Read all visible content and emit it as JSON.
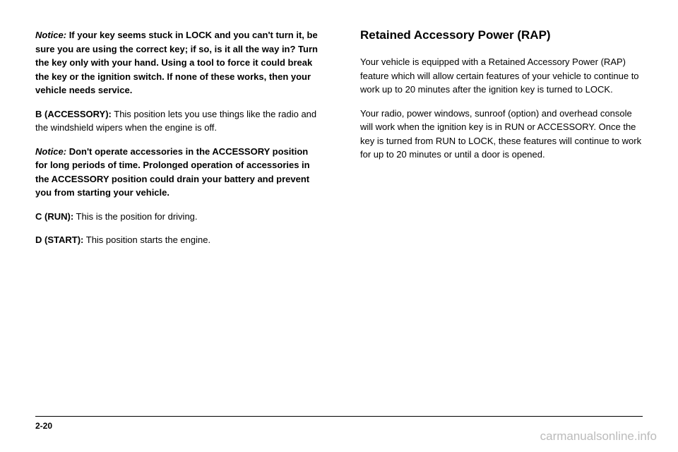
{
  "left": {
    "notice1": {
      "label": "Notice:",
      "text": "If your key seems stuck in LOCK and you can't turn it, be sure you are using the correct key; if so, is it all the way in? Turn the key only with your hand. Using a tool to force it could break the key or the ignition switch. If none of these works, then your vehicle needs service."
    },
    "positionB": {
      "label": "B (ACCESSORY):",
      "text": "This position lets you use things like the radio and the windshield wipers when the engine is off."
    },
    "notice2": {
      "label": "Notice:",
      "text": "Don't operate accessories in the ACCESSORY position for long periods of time. Prolonged operation of accessories in the ACCESSORY position could drain your battery and prevent you from starting your vehicle."
    },
    "positionC": {
      "label": "C (RUN):",
      "text": "This is the position for driving."
    },
    "positionD": {
      "label": "D (START):",
      "text": "This position starts the engine."
    }
  },
  "right": {
    "heading": "Retained Accessory Power (RAP)",
    "para1": "Your vehicle is equipped with a Retained Accessory Power (RAP) feature which will allow certain features of your vehicle to continue to work up to 20 minutes after the ignition key is turned to LOCK.",
    "para2": "Your radio, power windows, sunroof (option) and overhead console will work when the ignition key is in RUN or ACCESSORY. Once the key is turned from RUN to LOCK, these features will continue to work for up to 20 minutes or until a door is opened."
  },
  "footer": {
    "pageNumber": "2-20"
  },
  "watermark": "carmanualsonline.info"
}
